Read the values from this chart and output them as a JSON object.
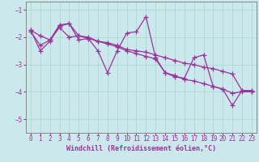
{
  "background_color": "#cbe8ec",
  "grid_color": "#b0d8d0",
  "line_color": "#993399",
  "marker": "+",
  "markersize": 4,
  "linewidth": 0.9,
  "xlabel": "Windchill (Refroidissement éolien,°C)",
  "xlabel_fontsize": 6.0,
  "xlim": [
    -0.5,
    23.5
  ],
  "ylim": [
    -5.5,
    -0.7
  ],
  "yticks": [
    -5,
    -4,
    -3,
    -2,
    -1
  ],
  "xticks": [
    0,
    1,
    2,
    3,
    4,
    5,
    6,
    7,
    8,
    9,
    10,
    11,
    12,
    13,
    14,
    15,
    16,
    17,
    18,
    19,
    20,
    21,
    22,
    23
  ],
  "tick_fontsize": 5.5,
  "series": [
    {
      "x": [
        0,
        1,
        2,
        3,
        4,
        5,
        6,
        7,
        8,
        9,
        10,
        11,
        12,
        13,
        14,
        15,
        16,
        17,
        18,
        19,
        20,
        21,
        22,
        23
      ],
      "y": [
        -1.8,
        -2.3,
        -2.1,
        -1.65,
        -2.0,
        -1.95,
        -2.05,
        -2.15,
        -2.25,
        -2.35,
        -2.5,
        -2.6,
        -2.7,
        -2.8,
        -3.3,
        -3.4,
        -3.55,
        -3.6,
        -3.7,
        -3.8,
        -3.9,
        -4.05,
        -4.0,
        -4.0
      ]
    },
    {
      "x": [
        0,
        1,
        2,
        3,
        4,
        5,
        6,
        7,
        8,
        9,
        10,
        11,
        12,
        13,
        14,
        15,
        16,
        17,
        18,
        19,
        20,
        21,
        22,
        23
      ],
      "y": [
        -1.75,
        -2.5,
        -2.15,
        -1.6,
        -1.5,
        -2.1,
        -2.05,
        -2.5,
        -3.3,
        -2.5,
        -1.85,
        -1.8,
        -1.25,
        -2.75,
        -3.3,
        -3.45,
        -3.5,
        -2.75,
        -2.65,
        -3.8,
        -3.9,
        -4.5,
        -3.95,
        -3.95
      ]
    },
    {
      "x": [
        0,
        1,
        2,
        3,
        4,
        5,
        6,
        7,
        8,
        9,
        10,
        11,
        12,
        13,
        14,
        15,
        16,
        17,
        18,
        19,
        20,
        21,
        22,
        23
      ],
      "y": [
        -1.75,
        -1.95,
        -2.1,
        -1.55,
        -1.5,
        -1.95,
        -2.0,
        -2.15,
        -2.2,
        -2.3,
        -2.45,
        -2.5,
        -2.55,
        -2.65,
        -2.75,
        -2.85,
        -2.95,
        -3.0,
        -3.1,
        -3.15,
        -3.25,
        -3.35,
        -3.95,
        -4.0
      ]
    }
  ]
}
